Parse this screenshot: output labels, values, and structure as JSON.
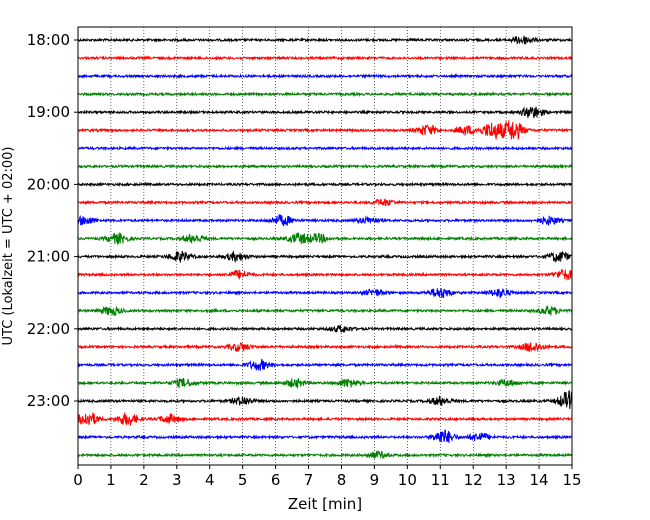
{
  "chart_data": {
    "type": "line",
    "title": "",
    "xlabel": "Zeit  [min]",
    "ylabel": "UTC (Lokalzeit = UTC + 02:00)",
    "xlim": [
      0,
      15
    ],
    "x_ticks": [
      "0",
      "1",
      "2",
      "3",
      "4",
      "5",
      "6",
      "7",
      "8",
      "9",
      "10",
      "11",
      "12",
      "13",
      "14",
      "15"
    ],
    "y_ticks": [
      "18:00",
      "19:00",
      "20:00",
      "21:00",
      "22:00",
      "23:00"
    ],
    "grid": "vertical-dotted",
    "trace_interval_minutes": 15,
    "colors": [
      "#000000",
      "#ff0000",
      "#0000ff",
      "#008000"
    ],
    "series": [
      {
        "start": "18:00",
        "color": "#000000",
        "bursts": [
          {
            "t": 13.5,
            "a": 4
          }
        ]
      },
      {
        "start": "18:15",
        "color": "#ff0000",
        "bursts": []
      },
      {
        "start": "18:30",
        "color": "#0000ff",
        "bursts": []
      },
      {
        "start": "18:45",
        "color": "#008000",
        "bursts": []
      },
      {
        "start": "19:00",
        "color": "#000000",
        "bursts": [
          {
            "t": 13.8,
            "a": 6
          }
        ]
      },
      {
        "start": "19:15",
        "color": "#ff0000",
        "bursts": [
          {
            "t": 10.6,
            "a": 5
          },
          {
            "t": 11.8,
            "a": 4
          },
          {
            "t": 12.6,
            "a": 8
          },
          {
            "t": 13.2,
            "a": 10
          }
        ]
      },
      {
        "start": "19:30",
        "color": "#0000ff",
        "bursts": []
      },
      {
        "start": "19:45",
        "color": "#008000",
        "bursts": []
      },
      {
        "start": "20:00",
        "color": "#000000",
        "bursts": []
      },
      {
        "start": "20:15",
        "color": "#ff0000",
        "bursts": [
          {
            "t": 9.3,
            "a": 3
          }
        ]
      },
      {
        "start": "20:30",
        "color": "#0000ff",
        "bursts": [
          {
            "t": 0.2,
            "a": 4
          },
          {
            "t": 6.2,
            "a": 5
          },
          {
            "t": 8.8,
            "a": 3
          },
          {
            "t": 14.3,
            "a": 4
          }
        ]
      },
      {
        "start": "20:45",
        "color": "#008000",
        "bursts": [
          {
            "t": 1.2,
            "a": 5
          },
          {
            "t": 3.5,
            "a": 4
          },
          {
            "t": 6.7,
            "a": 5
          },
          {
            "t": 7.3,
            "a": 4
          }
        ]
      },
      {
        "start": "21:00",
        "color": "#000000",
        "bursts": [
          {
            "t": 3.1,
            "a": 5
          },
          {
            "t": 4.8,
            "a": 4
          },
          {
            "t": 14.6,
            "a": 5
          }
        ]
      },
      {
        "start": "21:15",
        "color": "#ff0000",
        "bursts": [
          {
            "t": 4.9,
            "a": 4
          },
          {
            "t": 14.8,
            "a": 5
          }
        ]
      },
      {
        "start": "21:30",
        "color": "#0000ff",
        "bursts": [
          {
            "t": 9.0,
            "a": 3
          },
          {
            "t": 11.0,
            "a": 5
          },
          {
            "t": 12.8,
            "a": 4
          }
        ]
      },
      {
        "start": "21:45",
        "color": "#008000",
        "bursts": [
          {
            "t": 1.0,
            "a": 4
          },
          {
            "t": 14.3,
            "a": 4
          }
        ]
      },
      {
        "start": "22:00",
        "color": "#000000",
        "bursts": [
          {
            "t": 8.0,
            "a": 3
          }
        ]
      },
      {
        "start": "22:15",
        "color": "#ff0000",
        "bursts": [
          {
            "t": 4.9,
            "a": 4
          },
          {
            "t": 13.8,
            "a": 5
          }
        ]
      },
      {
        "start": "22:30",
        "color": "#0000ff",
        "bursts": [
          {
            "t": 5.5,
            "a": 5
          }
        ]
      },
      {
        "start": "22:45",
        "color": "#008000",
        "bursts": [
          {
            "t": 3.2,
            "a": 4
          },
          {
            "t": 6.6,
            "a": 4
          },
          {
            "t": 8.2,
            "a": 4
          },
          {
            "t": 13.0,
            "a": 3
          }
        ]
      },
      {
        "start": "23:00",
        "color": "#000000",
        "bursts": [
          {
            "t": 5.0,
            "a": 4
          },
          {
            "t": 11.0,
            "a": 4
          },
          {
            "t": 14.9,
            "a": 9
          }
        ]
      },
      {
        "start": "23:15",
        "color": "#ff0000",
        "bursts": [
          {
            "t": 0.3,
            "a": 7
          },
          {
            "t": 1.5,
            "a": 6
          },
          {
            "t": 2.8,
            "a": 4
          }
        ]
      },
      {
        "start": "23:30",
        "color": "#0000ff",
        "bursts": [
          {
            "t": 11.1,
            "a": 7
          },
          {
            "t": 12.2,
            "a": 4
          }
        ]
      },
      {
        "start": "23:45",
        "color": "#008000",
        "bursts": [
          {
            "t": 9.1,
            "a": 3
          }
        ]
      }
    ]
  }
}
